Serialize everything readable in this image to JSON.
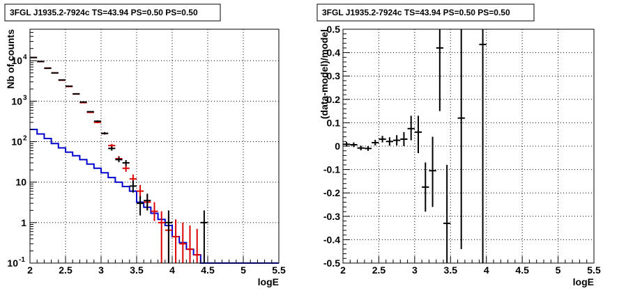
{
  "chart_data": [
    {
      "type": "line",
      "title": "3FGL J1935.2-7924c TS=43.94 PS=0.50 PS=0.50",
      "xlabel": "logE",
      "ylabel": "Nb of counts",
      "xlim": [
        2,
        5.5
      ],
      "ylim": [
        0.1,
        60000
      ],
      "yscale": "log",
      "grid": true,
      "x_ticks": [
        "2",
        "2.5",
        "3",
        "3.5",
        "4",
        "4.5",
        "5",
        "5.5"
      ],
      "y_ticks": [
        {
          "value": 0.1,
          "label": "10",
          "sup": "-1"
        },
        {
          "value": 1,
          "label": "1",
          "sup": ""
        },
        {
          "value": 10,
          "label": "10",
          "sup": ""
        },
        {
          "value": 100,
          "label": "10",
          "sup": "2"
        },
        {
          "value": 1000,
          "label": "10",
          "sup": "3"
        },
        {
          "value": 10000,
          "label": "10",
          "sup": "4"
        }
      ],
      "series": [
        {
          "color": "#0000cc",
          "style": "step",
          "edges": [
            2.0,
            2.1,
            2.2,
            2.3,
            2.4,
            2.5,
            2.6,
            2.7,
            2.8,
            2.9,
            3.0,
            3.1,
            3.2,
            3.3,
            3.4,
            3.5,
            3.6,
            3.7,
            3.8,
            3.9,
            4.0,
            4.1,
            4.2,
            4.3,
            4.4,
            4.5,
            4.6,
            4.7,
            4.8,
            4.9,
            5.0,
            5.1,
            5.2,
            5.3,
            5.4,
            5.5
          ],
          "values": [
            200,
            155,
            120,
            90,
            70,
            55,
            45,
            36,
            28,
            22,
            17,
            13,
            10,
            7.8,
            6.0,
            3.2,
            2.4,
            1.7,
            1.2,
            0.85,
            0.45,
            0.32,
            0.22,
            0.16,
            0.1,
            0.1,
            0.1,
            0.1,
            0.1,
            0.1,
            0.1,
            0.1,
            0.1,
            0.1,
            0.1
          ]
        },
        {
          "color": "#dd0000",
          "style": "points",
          "points": [
            {
              "x": 2.05,
              "y": 12000,
              "lo": 11800,
              "hi": 12200
            },
            {
              "x": 2.15,
              "y": 9500,
              "lo": 9350,
              "hi": 9650
            },
            {
              "x": 2.25,
              "y": 6600,
              "lo": 6480,
              "hi": 6720
            },
            {
              "x": 2.35,
              "y": 5000,
              "lo": 4900,
              "hi": 5100
            },
            {
              "x": 2.45,
              "y": 3300,
              "lo": 3220,
              "hi": 3380
            },
            {
              "x": 2.55,
              "y": 2300,
              "lo": 2240,
              "hi": 2360
            },
            {
              "x": 2.65,
              "y": 1500,
              "lo": 1460,
              "hi": 1540
            },
            {
              "x": 2.75,
              "y": 920,
              "lo": 890,
              "hi": 950
            },
            {
              "x": 2.85,
              "y": 530,
              "lo": 510,
              "hi": 550
            },
            {
              "x": 2.95,
              "y": 300,
              "lo": 285,
              "hi": 315
            },
            {
              "x": 3.05,
              "y": 160,
              "lo": 150,
              "hi": 172
            },
            {
              "x": 3.15,
              "y": 80,
              "lo": 72,
              "hi": 88
            },
            {
              "x": 3.25,
              "y": 38,
              "lo": 33,
              "hi": 44
            },
            {
              "x": 3.35,
              "y": 22,
              "lo": 18,
              "hi": 27
            },
            {
              "x": 3.45,
              "y": 12,
              "lo": 9,
              "hi": 15.5
            },
            {
              "x": 3.55,
              "y": 6,
              "lo": 4,
              "hi": 8.5
            },
            {
              "x": 3.65,
              "y": 3.2,
              "lo": 2.0,
              "hi": 4.8
            },
            {
              "x": 3.75,
              "y": 1.9,
              "lo": 1.1,
              "hi": 3.2
            },
            {
              "x": 3.85,
              "y": 1.0,
              "lo": 0.1,
              "hi": 1.9
            },
            {
              "x": 3.95,
              "y": 0.65,
              "lo": 0.1,
              "hi": 1.5
            },
            {
              "x": 4.05,
              "y": 0.45,
              "lo": 0.1,
              "hi": 1.2
            },
            {
              "x": 4.15,
              "y": 0.3,
              "lo": 0.1,
              "hi": 1.0
            },
            {
              "x": 4.25,
              "y": 0.22,
              "lo": 0.1,
              "hi": 0.85
            },
            {
              "x": 4.35,
              "y": 0.16,
              "lo": 0.1,
              "hi": 0.7
            }
          ]
        },
        {
          "color": "#000000",
          "style": "points",
          "points": [
            {
              "x": 2.05,
              "y": 12000,
              "lo": 11800,
              "hi": 12200
            },
            {
              "x": 2.15,
              "y": 9600,
              "lo": 9450,
              "hi": 9750
            },
            {
              "x": 2.25,
              "y": 6500,
              "lo": 6380,
              "hi": 6620
            },
            {
              "x": 2.35,
              "y": 5000,
              "lo": 4900,
              "hi": 5100
            },
            {
              "x": 2.45,
              "y": 3350,
              "lo": 3270,
              "hi": 3430
            },
            {
              "x": 2.55,
              "y": 2350,
              "lo": 2290,
              "hi": 2410
            },
            {
              "x": 2.65,
              "y": 1520,
              "lo": 1480,
              "hi": 1560
            },
            {
              "x": 2.75,
              "y": 950,
              "lo": 920,
              "hi": 980
            },
            {
              "x": 2.85,
              "y": 550,
              "lo": 530,
              "hi": 570
            },
            {
              "x": 2.95,
              "y": 320,
              "lo": 305,
              "hi": 335
            },
            {
              "x": 3.05,
              "y": 160,
              "lo": 150,
              "hi": 172
            },
            {
              "x": 3.15,
              "y": 68,
              "lo": 60,
              "hi": 76
            },
            {
              "x": 3.25,
              "y": 36,
              "lo": 31,
              "hi": 42
            },
            {
              "x": 3.35,
              "y": 30,
              "lo": 25,
              "hi": 35
            },
            {
              "x": 3.45,
              "y": 8,
              "lo": 5.5,
              "hi": 11
            },
            {
              "x": 3.55,
              "y": 3,
              "lo": 1.5,
              "hi": 4.5
            },
            {
              "x": 3.65,
              "y": 3.5,
              "lo": 2.0,
              "hi": 5.2
            },
            {
              "x": 3.95,
              "y": 1.0,
              "lo": 0.1,
              "hi": 2.0
            },
            {
              "x": 4.45,
              "y": 1.0,
              "lo": 0.1,
              "hi": 2.0
            }
          ]
        }
      ]
    },
    {
      "type": "scatter",
      "title": "3FGL J1935.2-7924c TS=43.94 PS=0.50 PS=0.50",
      "xlabel": "logE",
      "ylabel": "(data-model)/model",
      "xlim": [
        2,
        5.5
      ],
      "ylim": [
        -0.5,
        0.5
      ],
      "grid": true,
      "x_ticks": [
        "2",
        "2.5",
        "3",
        "3.5",
        "4",
        "4.5",
        "5",
        "5.5"
      ],
      "y_ticks": [
        "-0.5",
        "-0.4",
        "-0.3",
        "-0.2",
        "-0.1",
        "0",
        "0.1",
        "0.2",
        "0.3",
        "0.4",
        "0.5"
      ],
      "series": [
        {
          "color": "#000000",
          "points": [
            {
              "x": 2.05,
              "y": 0.008,
              "lo": -0.002,
              "hi": 0.018
            },
            {
              "x": 2.15,
              "y": 0.006,
              "lo": -0.004,
              "hi": 0.016
            },
            {
              "x": 2.25,
              "y": -0.008,
              "lo": -0.018,
              "hi": 0.002
            },
            {
              "x": 2.35,
              "y": -0.01,
              "lo": -0.02,
              "hi": 0.0
            },
            {
              "x": 2.45,
              "y": 0.015,
              "lo": 0.003,
              "hi": 0.027
            },
            {
              "x": 2.55,
              "y": 0.03,
              "lo": 0.016,
              "hi": 0.044
            },
            {
              "x": 2.65,
              "y": 0.02,
              "lo": 0.002,
              "hi": 0.038
            },
            {
              "x": 2.75,
              "y": 0.025,
              "lo": 0.003,
              "hi": 0.047
            },
            {
              "x": 2.85,
              "y": 0.03,
              "lo": 0.0,
              "hi": 0.06
            },
            {
              "x": 2.95,
              "y": 0.075,
              "lo": 0.025,
              "hi": 0.13
            },
            {
              "x": 3.05,
              "y": 0.06,
              "lo": -0.03,
              "hi": 0.13
            },
            {
              "x": 3.15,
              "y": -0.175,
              "lo": -0.28,
              "hi": -0.07
            },
            {
              "x": 3.25,
              "y": -0.105,
              "lo": -0.26,
              "hi": 0.04
            },
            {
              "x": 3.35,
              "y": 0.42,
              "lo": 0.15,
              "hi": 0.5
            },
            {
              "x": 3.45,
              "y": -0.33,
              "lo": -0.5,
              "hi": -0.08
            },
            {
              "x": 3.65,
              "y": 0.12,
              "lo": -0.44,
              "hi": 0.5
            },
            {
              "x": 3.95,
              "y": 0.435,
              "lo": -0.5,
              "hi": 0.5
            }
          ]
        }
      ]
    }
  ]
}
